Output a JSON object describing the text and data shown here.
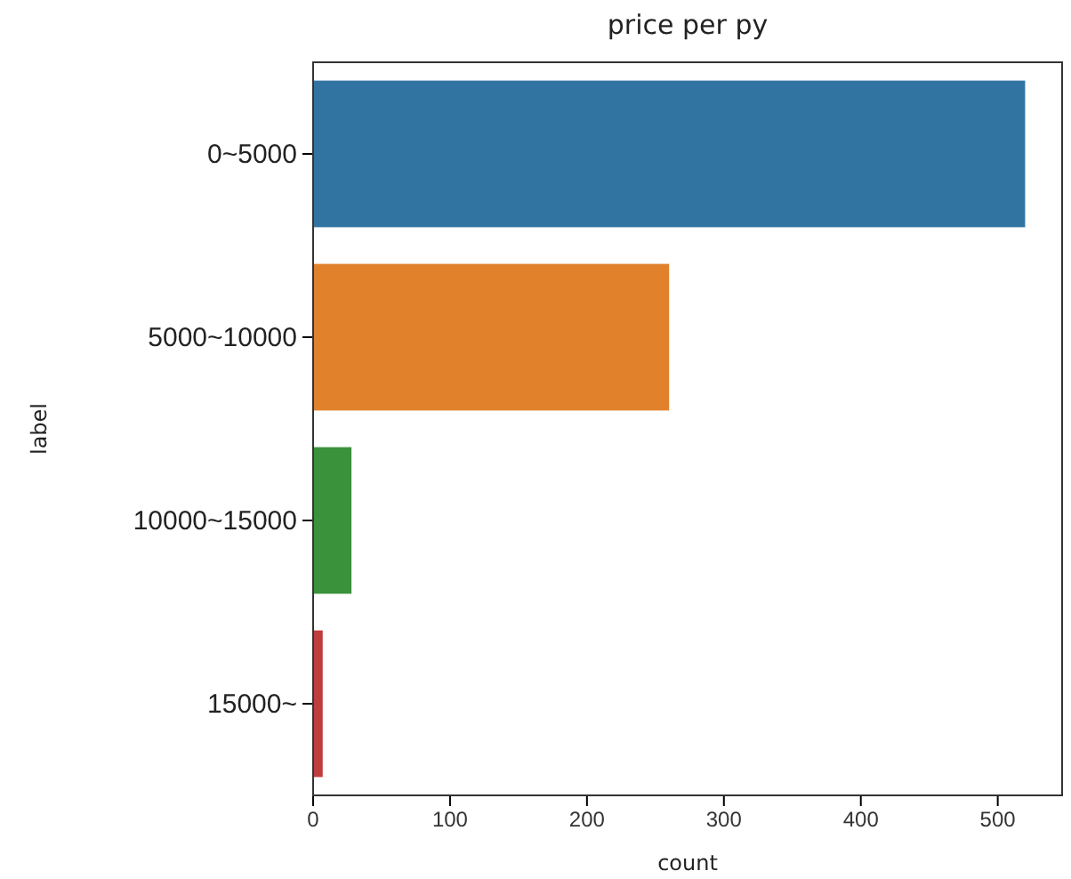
{
  "chart_data": {
    "type": "bar",
    "orientation": "horizontal",
    "title": "price per py",
    "xlabel": "count",
    "ylabel": "label",
    "categories": [
      "0~5000",
      "5000~10000",
      "10000~15000",
      "15000~"
    ],
    "values": [
      520,
      260,
      28,
      7
    ],
    "colors": [
      "#3274a1",
      "#e1812c",
      "#3a923a",
      "#c03d3e"
    ],
    "xlim": [
      0,
      547
    ],
    "xticks": [
      0,
      100,
      200,
      300,
      400,
      500
    ]
  }
}
